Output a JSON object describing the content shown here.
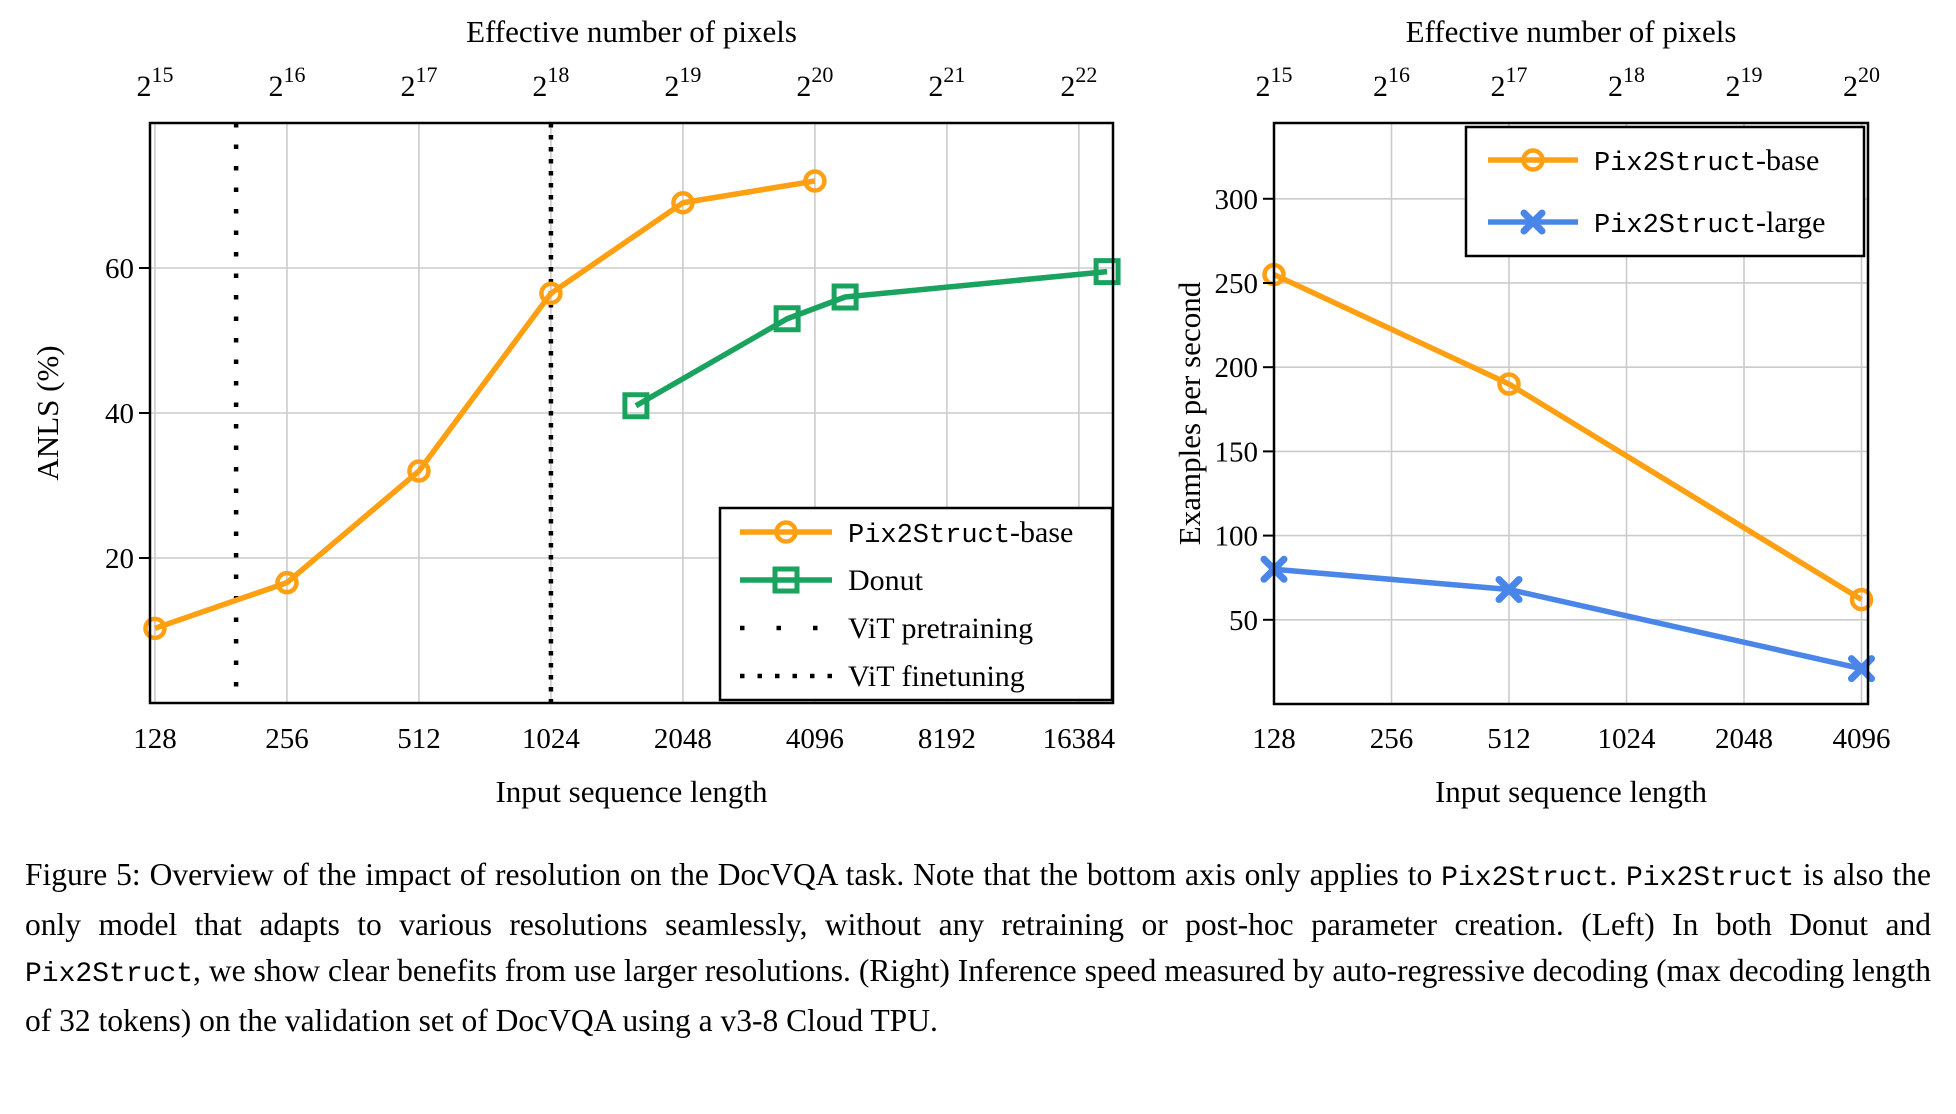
{
  "caption": {
    "segments": [
      {
        "mono": false,
        "text": "Figure 5:  Overview of the impact of resolution on the DocVQA task.  Note that the bottom axis only applies to "
      },
      {
        "mono": true,
        "text": "Pix2Struct"
      },
      {
        "mono": false,
        "text": ". "
      },
      {
        "mono": true,
        "text": "Pix2Struct"
      },
      {
        "mono": false,
        "text": " is also the only model that adapts to various resolutions seamlessly, without any retraining or post-hoc parameter creation. (Left) In both Donut and "
      },
      {
        "mono": true,
        "text": "Pix2Struct"
      },
      {
        "mono": false,
        "text": ", we show clear benefits from use larger resolutions. (Right) Inference speed measured by auto-regressive decoding (max decoding length of 32 tokens) on the validation set of DocVQA using a v3-8 Cloud TPU."
      }
    ]
  },
  "colors": {
    "base": "#FFA012",
    "donut": "#19A35F",
    "large": "#4A86E8",
    "grid": "#CBCBCB",
    "axis": "#000000"
  },
  "chart_data": [
    {
      "type": "line",
      "title_top": "Effective number of pixels",
      "xlabel": "Input sequence length",
      "ylabel": "ANLS (%)",
      "x_scale": "log2",
      "xlim": [
        124.7,
        19600
      ],
      "ylim": [
        0,
        80
      ],
      "x_ticks": [
        128,
        256,
        512,
        1024,
        2048,
        4096,
        8192,
        16384
      ],
      "y_ticks": [
        20,
        40,
        60
      ],
      "top_tick_base": 2,
      "top_tick_exponents": [
        15,
        16,
        17,
        18,
        19,
        20,
        21,
        22
      ],
      "grid": true,
      "series": [
        {
          "name": "Pix2Struct-base",
          "color_key": "base",
          "marker": "circle",
          "points": [
            [
              128,
              10.3
            ],
            [
              256,
              16.6
            ],
            [
              512,
              32
            ],
            [
              1024,
              56.5
            ],
            [
              2048,
              69
            ],
            [
              4096,
              72
            ]
          ]
        },
        {
          "name": "Donut",
          "color_key": "donut",
          "marker": "square",
          "points": [
            [
              1600,
              41
            ],
            [
              3540,
              53
            ],
            [
              4800,
              56
            ],
            [
              19000,
              59.5
            ]
          ]
        }
      ],
      "vlines": [
        {
          "name": "ViT pretraining",
          "x": 196,
          "pattern": "sparse"
        },
        {
          "name": "ViT finetuning",
          "x": 1024,
          "pattern": "dense"
        }
      ],
      "legend": {
        "position": "bottom-right",
        "entries": [
          {
            "marker": "line-circle",
            "color_key": "base",
            "segments": [
              {
                "mono": true,
                "text": "Pix2Struct"
              },
              {
                "mono": false,
                "text": "-base"
              }
            ]
          },
          {
            "marker": "line-square",
            "color_key": "donut",
            "segments": [
              {
                "mono": false,
                "text": "Donut"
              }
            ]
          },
          {
            "marker": "dots-sparse",
            "color_key": "axis",
            "segments": [
              {
                "mono": false,
                "text": "ViT pretraining"
              }
            ]
          },
          {
            "marker": "dots-dense",
            "color_key": "axis",
            "segments": [
              {
                "mono": false,
                "text": "ViT finetuning"
              }
            ]
          }
        ]
      }
    },
    {
      "type": "line",
      "title_top": "Effective number of pixels",
      "xlabel": "Input sequence length",
      "ylabel": "Examples per second",
      "x_scale": "log2",
      "xlim": [
        128,
        4256
      ],
      "ylim": [
        0,
        345
      ],
      "x_ticks": [
        128,
        256,
        512,
        1024,
        2048,
        4096
      ],
      "y_ticks": [
        50,
        100,
        150,
        200,
        250,
        300
      ],
      "top_tick_base": 2,
      "top_tick_exponents": [
        15,
        16,
        17,
        18,
        19,
        20
      ],
      "grid": true,
      "series": [
        {
          "name": "Pix2Struct-base",
          "color_key": "base",
          "marker": "circle",
          "points": [
            [
              128,
              255
            ],
            [
              512,
              190
            ],
            [
              4096,
              62
            ]
          ]
        },
        {
          "name": "Pix2Struct-large",
          "color_key": "large",
          "marker": "x",
          "points": [
            [
              128,
              80
            ],
            [
              512,
              68
            ],
            [
              4096,
              21
            ]
          ]
        }
      ],
      "vlines": [],
      "legend": {
        "position": "top-right",
        "entries": [
          {
            "marker": "line-circle",
            "color_key": "base",
            "segments": [
              {
                "mono": true,
                "text": "Pix2Struct"
              },
              {
                "mono": false,
                "text": "-base"
              }
            ]
          },
          {
            "marker": "line-x",
            "color_key": "large",
            "segments": [
              {
                "mono": true,
                "text": "Pix2Struct"
              },
              {
                "mono": false,
                "text": "-large"
              }
            ]
          }
        ]
      }
    }
  ]
}
